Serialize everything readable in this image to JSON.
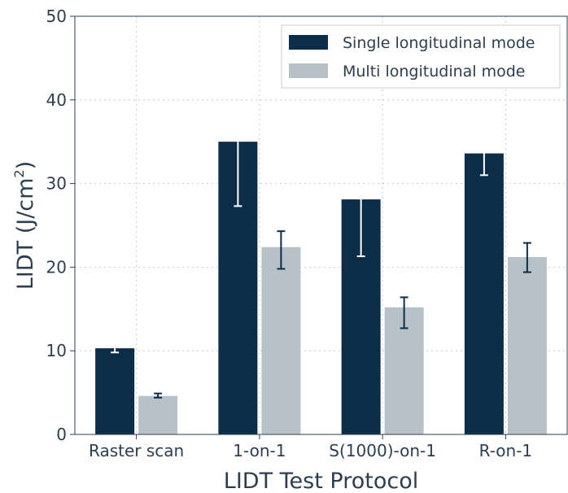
{
  "chart_data": {
    "type": "bar",
    "categories": [
      "Raster scan",
      "1-on-1",
      "S(1000)-on-1",
      "R-on-1"
    ],
    "series": [
      {
        "name": "Single longitudinal mode",
        "color": "#0b2d48",
        "error_color": "#ffffff",
        "values": [
          10.3,
          35.0,
          28.1,
          33.6
        ],
        "err_low": [
          9.8,
          27.3,
          21.3,
          31.0
        ],
        "err_high": [
          10.8,
          38.5,
          31.7,
          36.3
        ]
      },
      {
        "name": "Multi longitudinal mode",
        "color": "#b6c1c8",
        "error_color": "#0b2d48",
        "values": [
          4.6,
          22.4,
          15.2,
          21.2
        ],
        "err_low": [
          4.4,
          19.8,
          12.7,
          19.4
        ],
        "err_high": [
          4.9,
          24.3,
          16.4,
          22.9
        ]
      }
    ],
    "xlabel": "LIDT Test Protocol",
    "ylabel": "LIDT (J/cm",
    "ylabel_sup": "2",
    "ylabel_close": ")",
    "ylim": [
      0,
      50
    ],
    "yticks": [
      0,
      10,
      20,
      30,
      40,
      50
    ],
    "grid": true,
    "legend_position": "top-right"
  }
}
